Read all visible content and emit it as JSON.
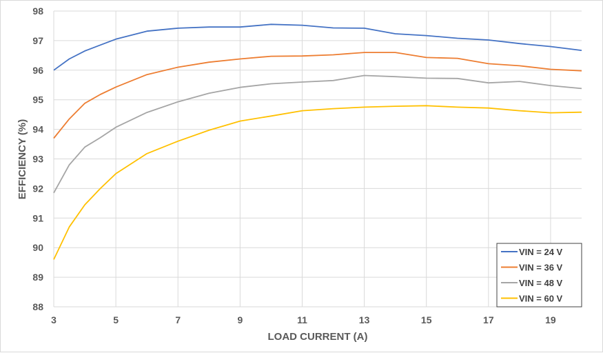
{
  "chart_data": {
    "type": "line",
    "title": "",
    "xlabel": "LOAD CURRENT (A)",
    "ylabel": "EFFICIENCY (%)",
    "xlim": [
      3,
      20
    ],
    "ylim": [
      88,
      98
    ],
    "x_ticks": [
      3,
      5,
      7,
      9,
      11,
      13,
      15,
      17,
      19
    ],
    "y_ticks": [
      88,
      89,
      90,
      91,
      92,
      93,
      94,
      95,
      96,
      97,
      98
    ],
    "grid": true,
    "legend_position": "lower right",
    "x": [
      3,
      3.5,
      4,
      4.5,
      5,
      6,
      7,
      8,
      9,
      10,
      11,
      12,
      13,
      14,
      15,
      16,
      17,
      18,
      19,
      20
    ],
    "series": [
      {
        "name": "VIN = 24 V",
        "color": "#4472C4",
        "values": [
          96.0,
          96.38,
          96.65,
          96.85,
          97.05,
          97.32,
          97.42,
          97.46,
          97.46,
          97.55,
          97.52,
          97.43,
          97.42,
          97.23,
          97.17,
          97.08,
          97.02,
          96.9,
          96.8,
          96.67
        ]
      },
      {
        "name": "VIN = 36 V",
        "color": "#ED7D31",
        "values": [
          93.7,
          94.35,
          94.88,
          95.18,
          95.43,
          95.85,
          96.1,
          96.27,
          96.38,
          96.47,
          96.48,
          96.52,
          96.6,
          96.6,
          96.43,
          96.4,
          96.22,
          96.15,
          96.03,
          95.98
        ]
      },
      {
        "name": "VIN = 48 V",
        "color": "#A5A5A5",
        "values": [
          91.85,
          92.8,
          93.4,
          93.72,
          94.07,
          94.57,
          94.93,
          95.22,
          95.42,
          95.54,
          95.6,
          95.65,
          95.82,
          95.78,
          95.73,
          95.72,
          95.57,
          95.62,
          95.48,
          95.38
        ]
      },
      {
        "name": "VIN = 60 V",
        "color": "#FFC000",
        "values": [
          89.6,
          90.7,
          91.45,
          92.0,
          92.5,
          93.18,
          93.6,
          93.97,
          94.28,
          94.45,
          94.63,
          94.7,
          94.75,
          94.78,
          94.8,
          94.75,
          94.72,
          94.63,
          94.56,
          94.58
        ]
      }
    ]
  },
  "colors": {
    "grid": "#d9d9d9",
    "tick_text": "#595959",
    "legend_border": "#404040"
  }
}
